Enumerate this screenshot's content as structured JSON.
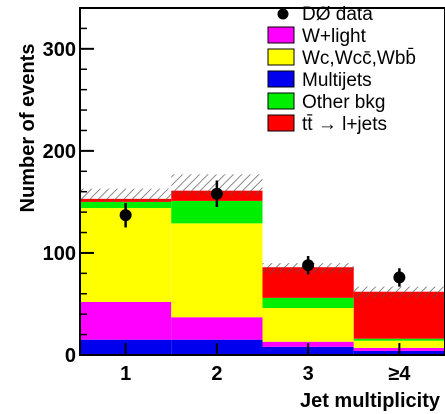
{
  "chart_data": {
    "type": "bar",
    "stacked": true,
    "categories": [
      "1",
      "2",
      "3",
      "≥4"
    ],
    "xlabel": "Jet multiplicity",
    "ylabel": "Number of events",
    "ylim": [
      0,
      340
    ],
    "yticks": [
      0,
      100,
      200,
      300
    ],
    "grid": false,
    "legend_position": "top-right",
    "series": [
      {
        "name": "Multijets",
        "color": "#0000ee",
        "values": [
          15,
          15,
          8,
          4
        ]
      },
      {
        "name": "W+light",
        "color": "#ff00ff",
        "values": [
          37,
          22,
          5,
          3
        ]
      },
      {
        "name": "Wc,Wcc̄,Wbb̄",
        "color": "#ffff00",
        "values": [
          92,
          92,
          33,
          7
        ]
      },
      {
        "name": "Other bkg",
        "color": "#00ee00",
        "values": [
          6,
          22,
          10,
          2
        ]
      },
      {
        "name": "tt̄ → l+jets",
        "color": "#ff0000",
        "values": [
          3,
          10,
          30,
          46
        ]
      }
    ],
    "data": {
      "name": "DØ data",
      "values": [
        137,
        158,
        88,
        76
      ],
      "errors": [
        12,
        13,
        9,
        9
      ]
    },
    "uncertainty_band": {
      "lower": [
        150,
        157,
        80,
        56
      ],
      "upper": [
        163,
        177,
        90,
        67
      ]
    }
  }
}
